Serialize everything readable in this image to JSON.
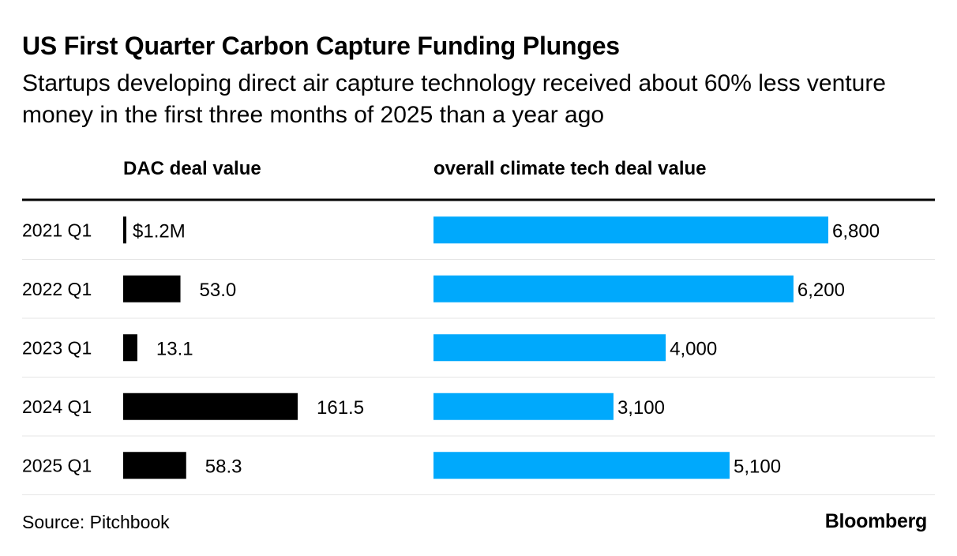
{
  "title": "US First Quarter Carbon Capture Funding Plunges",
  "subtitle": "Startups developing direct air capture technology received about 60% less venture money in the first three months of 2025 than a year ago",
  "source": "Source: Pitchbook",
  "brand": "Bloomberg",
  "colors": {
    "dac_bar": "#000000",
    "climate_bar": "#00a9fc",
    "separator": "#e6e6e6",
    "header_rule": "#000000"
  },
  "chart_data": [
    {
      "type": "bar",
      "orientation": "horizontal",
      "title": "DAC deal value",
      "categories": [
        "2021 Q1",
        "2022 Q1",
        "2023 Q1",
        "2024 Q1",
        "2025 Q1"
      ],
      "values": [
        1.2,
        53.0,
        13.1,
        161.5,
        58.3
      ],
      "labels": [
        "$1.2M",
        "53.0",
        "13.1",
        "161.5",
        "58.3"
      ],
      "xlim": [
        0,
        161.5
      ],
      "grid": false,
      "color": "#000000"
    },
    {
      "type": "bar",
      "orientation": "horizontal",
      "title": "overall climate tech deal value",
      "categories": [
        "2021 Q1",
        "2022 Q1",
        "2023 Q1",
        "2024 Q1",
        "2025 Q1"
      ],
      "values": [
        6800,
        6200,
        4000,
        3100,
        5100
      ],
      "labels": [
        "6,800",
        "6,200",
        "4,000",
        "3,100",
        "5,100"
      ],
      "xlim": [
        0,
        6800
      ],
      "grid": false,
      "color": "#00a9fc"
    }
  ]
}
